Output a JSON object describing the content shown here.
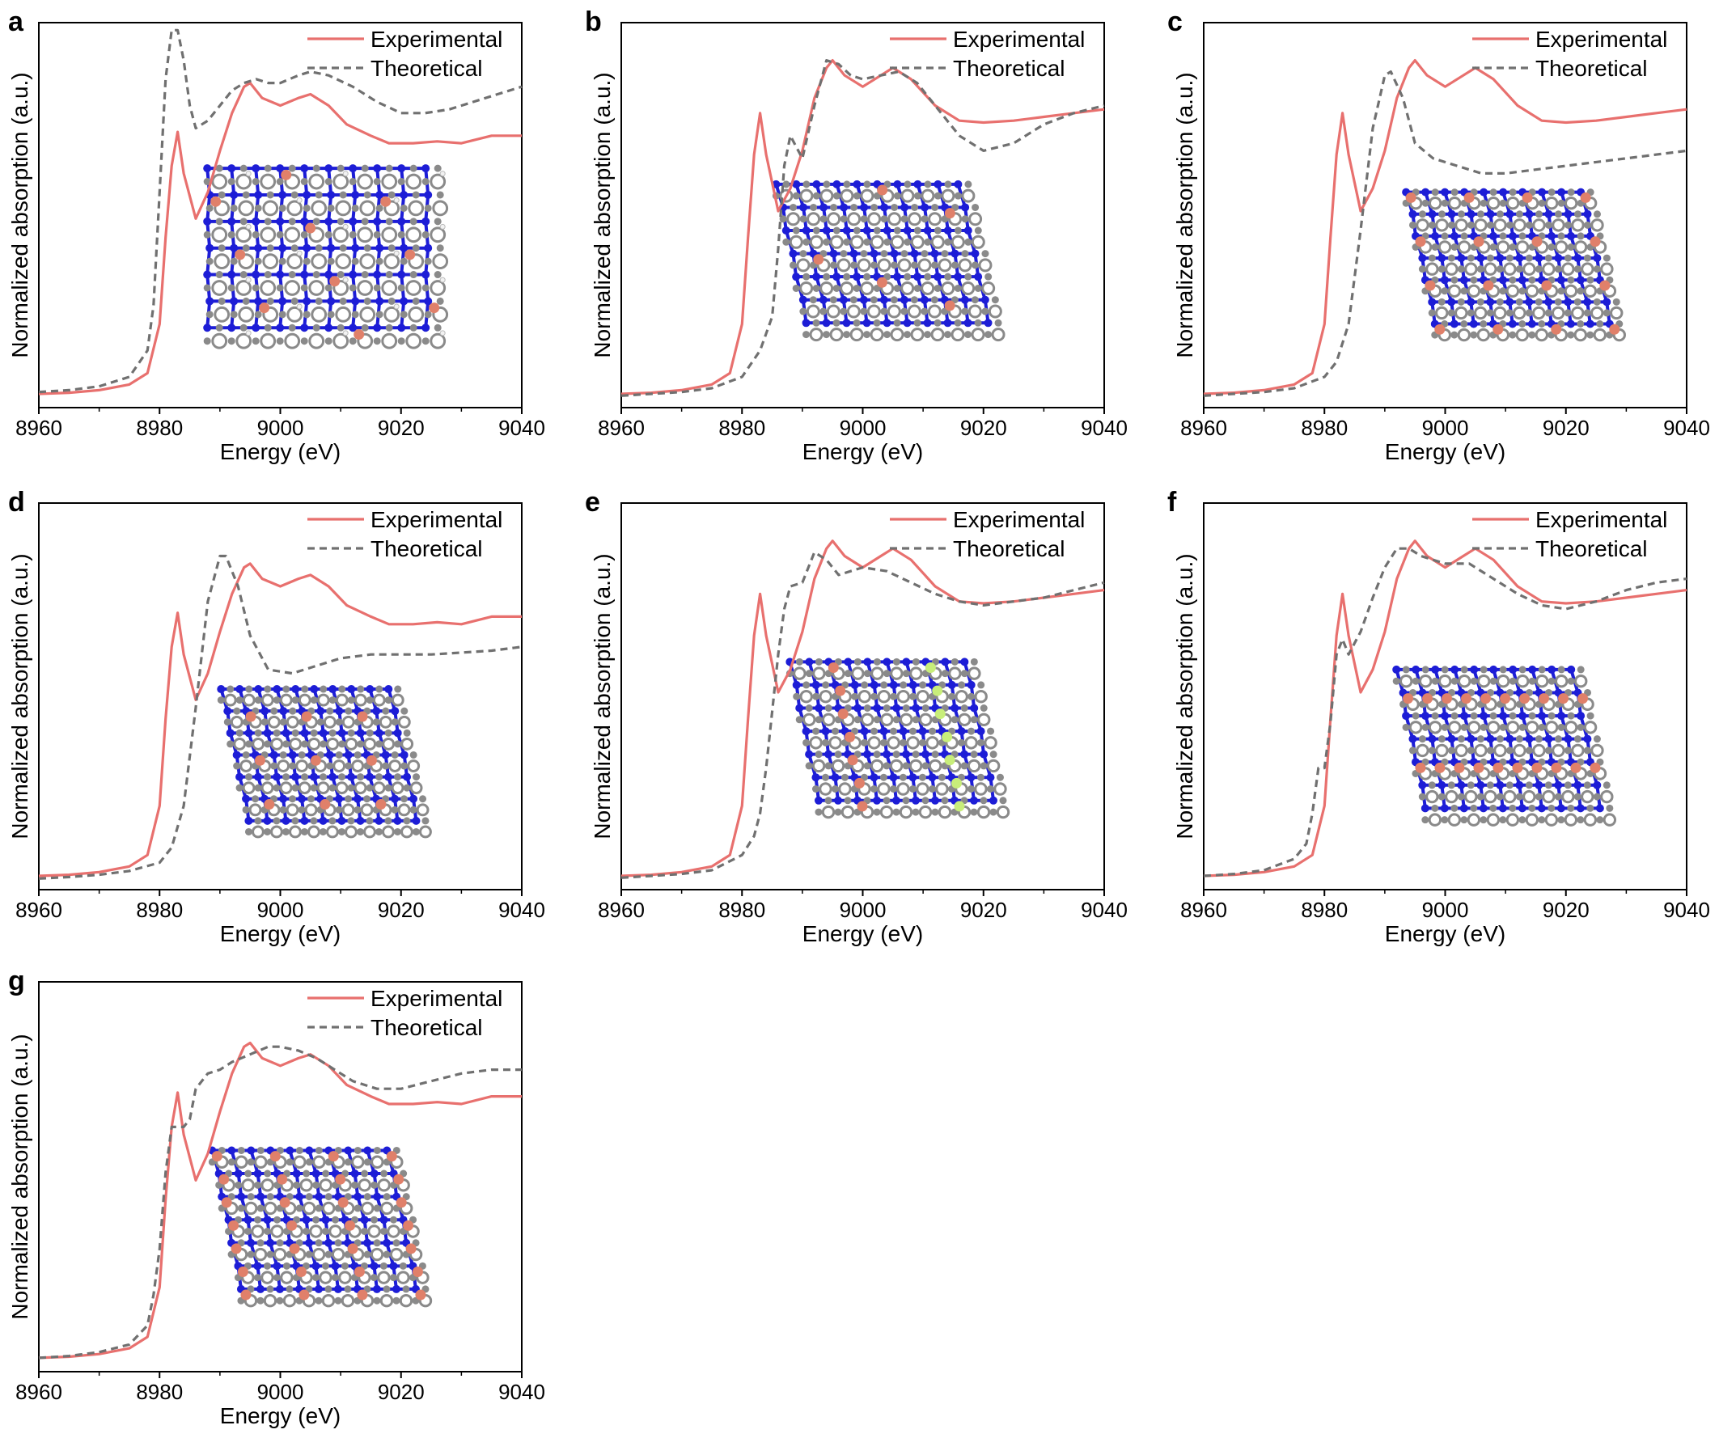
{
  "figure": {
    "colors": {
      "experimental": "#e8706e",
      "theoretical": "#707070",
      "axis": "#000000",
      "carbon": "#8a8a8a",
      "nitrogen": "#1d1dd6",
      "copper": "#e0806a",
      "hydrogen": "#f2f2f2",
      "chlorine": "#c8ee7a"
    }
  },
  "chart_data": [
    {
      "panel": "a",
      "type": "line",
      "xlabel": "Energy (eV)",
      "ylabel": "Normalized absorption (a.u.)",
      "xlim": [
        8960,
        9040
      ],
      "ylim": [
        0,
        1
      ],
      "xticks": [
        "8960",
        "8980",
        "9000",
        "9020",
        "9040"
      ],
      "legend": [
        "Experimental",
        "Theoretical"
      ],
      "legend_position": "top-right",
      "inset": "structure-a",
      "series": [
        {
          "name": "Experimental",
          "x": [
            8960,
            8965,
            8970,
            8975,
            8978,
            8980,
            8981,
            8982,
            8983,
            8984,
            8986,
            8988,
            8990,
            8992,
            8994,
            8995,
            8997,
            9000,
            9003,
            9005,
            9008,
            9011,
            9015,
            9018,
            9022,
            9026,
            9030,
            9035,
            9040
          ],
          "y": [
            0.015,
            0.018,
            0.025,
            0.04,
            0.07,
            0.2,
            0.43,
            0.62,
            0.71,
            0.6,
            0.48,
            0.55,
            0.66,
            0.76,
            0.83,
            0.84,
            0.8,
            0.78,
            0.8,
            0.81,
            0.78,
            0.73,
            0.7,
            0.68,
            0.68,
            0.685,
            0.68,
            0.7,
            0.7
          ]
        },
        {
          "name": "Theoretical",
          "x": [
            8960,
            8965,
            8970,
            8975,
            8978,
            8979,
            8980,
            8981,
            8982,
            8983,
            8984,
            8985,
            8986,
            8988,
            8990,
            8992,
            8994,
            8996,
            8998,
            9000,
            9003,
            9005,
            9008,
            9012,
            9016,
            9020,
            9024,
            9028,
            9032,
            9036,
            9040
          ],
          "y": [
            0.02,
            0.025,
            0.035,
            0.06,
            0.13,
            0.25,
            0.55,
            0.85,
            0.98,
            0.98,
            0.9,
            0.78,
            0.72,
            0.74,
            0.78,
            0.82,
            0.84,
            0.85,
            0.84,
            0.84,
            0.86,
            0.87,
            0.86,
            0.83,
            0.79,
            0.76,
            0.76,
            0.77,
            0.79,
            0.81,
            0.83
          ]
        }
      ]
    },
    {
      "panel": "b",
      "type": "line",
      "xlabel": "Energy (eV)",
      "ylabel": "Normalized absorption (a.u.)",
      "xlim": [
        8960,
        9040
      ],
      "ylim": [
        0,
        1
      ],
      "xticks": [
        "8960",
        "8980",
        "9000",
        "9020",
        "9040"
      ],
      "legend": [
        "Experimental",
        "Theoretical"
      ],
      "legend_position": "top-right",
      "inset": "structure-b",
      "series": [
        {
          "name": "Experimental",
          "x": [
            8960,
            8965,
            8970,
            8975,
            8978,
            8980,
            8981,
            8982,
            8983,
            8984,
            8986,
            8988,
            8990,
            8992,
            8994,
            8995,
            8997,
            9000,
            9003,
            9005,
            9008,
            9012,
            9016,
            9020,
            9025,
            9030,
            9035,
            9040
          ],
          "y": [
            0.015,
            0.018,
            0.025,
            0.04,
            0.07,
            0.2,
            0.43,
            0.65,
            0.76,
            0.65,
            0.5,
            0.56,
            0.66,
            0.8,
            0.88,
            0.9,
            0.86,
            0.83,
            0.86,
            0.88,
            0.85,
            0.78,
            0.74,
            0.735,
            0.74,
            0.75,
            0.76,
            0.77
          ]
        },
        {
          "name": "Theoretical",
          "x": [
            8960,
            8965,
            8970,
            8975,
            8980,
            8983,
            8985,
            8986,
            8987,
            8988,
            8989,
            8990,
            8992,
            8994,
            8996,
            8998,
            9000,
            9003,
            9006,
            9009,
            9012,
            9016,
            9020,
            9025,
            9030,
            9035,
            9040
          ],
          "y": [
            0.01,
            0.015,
            0.02,
            0.03,
            0.06,
            0.13,
            0.22,
            0.4,
            0.62,
            0.7,
            0.67,
            0.64,
            0.78,
            0.9,
            0.89,
            0.86,
            0.85,
            0.86,
            0.87,
            0.84,
            0.78,
            0.7,
            0.66,
            0.68,
            0.73,
            0.76,
            0.78
          ]
        }
      ]
    },
    {
      "panel": "c",
      "type": "line",
      "xlabel": "Energy (eV)",
      "ylabel": "Normalized absorption (a.u.)",
      "xlim": [
        8960,
        9040
      ],
      "ylim": [
        0,
        1
      ],
      "xticks": [
        "8960",
        "8980",
        "9000",
        "9020",
        "9040"
      ],
      "legend": [
        "Experimental",
        "Theoretical"
      ],
      "legend_position": "top-right",
      "inset": "structure-c",
      "series": [
        {
          "name": "Experimental",
          "x": [
            8960,
            8965,
            8970,
            8975,
            8978,
            8980,
            8981,
            8982,
            8983,
            8984,
            8986,
            8988,
            8990,
            8992,
            8994,
            8995,
            8997,
            9000,
            9003,
            9005,
            9008,
            9012,
            9016,
            9020,
            9025,
            9030,
            9035,
            9040
          ],
          "y": [
            0.015,
            0.018,
            0.025,
            0.04,
            0.07,
            0.2,
            0.43,
            0.65,
            0.76,
            0.65,
            0.5,
            0.56,
            0.66,
            0.8,
            0.88,
            0.9,
            0.86,
            0.83,
            0.86,
            0.88,
            0.85,
            0.78,
            0.74,
            0.735,
            0.74,
            0.75,
            0.76,
            0.77
          ]
        },
        {
          "name": "Theoretical",
          "x": [
            8960,
            8965,
            8970,
            8975,
            8980,
            8982,
            8984,
            8986,
            8988,
            8990,
            8991,
            8993,
            8995,
            8998,
            9002,
            9006,
            9010,
            9015,
            9020,
            9025,
            9030,
            9035,
            9040
          ],
          "y": [
            0.01,
            0.015,
            0.02,
            0.03,
            0.06,
            0.1,
            0.2,
            0.45,
            0.72,
            0.86,
            0.87,
            0.8,
            0.68,
            0.64,
            0.62,
            0.6,
            0.6,
            0.61,
            0.62,
            0.63,
            0.64,
            0.65,
            0.66
          ]
        }
      ]
    },
    {
      "panel": "d",
      "type": "line",
      "xlabel": "Energy (eV)",
      "ylabel": "Normalized absorption (a.u.)",
      "xlim": [
        8960,
        9040
      ],
      "ylim": [
        0,
        1
      ],
      "xticks": [
        "8960",
        "8980",
        "9000",
        "9020",
        "9040"
      ],
      "legend": [
        "Experimental",
        "Theoretical"
      ],
      "legend_position": "top-right",
      "inset": "structure-d",
      "series": [
        {
          "name": "Experimental",
          "x": [
            8960,
            8965,
            8970,
            8975,
            8978,
            8980,
            8981,
            8982,
            8983,
            8984,
            8986,
            8988,
            8990,
            8992,
            8994,
            8995,
            8997,
            9000,
            9003,
            9005,
            9008,
            9011,
            9015,
            9018,
            9022,
            9026,
            9030,
            9035,
            9040
          ],
          "y": [
            0.015,
            0.018,
            0.025,
            0.04,
            0.07,
            0.2,
            0.43,
            0.62,
            0.71,
            0.6,
            0.48,
            0.55,
            0.66,
            0.76,
            0.83,
            0.84,
            0.8,
            0.78,
            0.8,
            0.81,
            0.78,
            0.73,
            0.7,
            0.68,
            0.68,
            0.685,
            0.68,
            0.7,
            0.7
          ]
        },
        {
          "name": "Theoretical",
          "x": [
            8960,
            8965,
            8970,
            8975,
            8980,
            8982,
            8984,
            8986,
            8988,
            8990,
            8991,
            8993,
            8995,
            8998,
            9002,
            9006,
            9010,
            9015,
            9020,
            9025,
            9030,
            9035,
            9040
          ],
          "y": [
            0.008,
            0.012,
            0.018,
            0.028,
            0.05,
            0.09,
            0.2,
            0.46,
            0.74,
            0.86,
            0.86,
            0.78,
            0.65,
            0.56,
            0.55,
            0.57,
            0.59,
            0.6,
            0.6,
            0.6,
            0.605,
            0.61,
            0.62
          ]
        }
      ]
    },
    {
      "panel": "e",
      "type": "line",
      "xlabel": "Energy (eV)",
      "ylabel": "Normalized absorption (a.u.)",
      "xlim": [
        8960,
        9040
      ],
      "ylim": [
        0,
        1
      ],
      "xticks": [
        "8960",
        "8980",
        "9000",
        "9020",
        "9040"
      ],
      "legend": [
        "Experimental",
        "Theoretical"
      ],
      "legend_position": "top-right",
      "inset": "structure-e",
      "series": [
        {
          "name": "Experimental",
          "x": [
            8960,
            8965,
            8970,
            8975,
            8978,
            8980,
            8981,
            8982,
            8983,
            8984,
            8986,
            8988,
            8990,
            8992,
            8994,
            8995,
            8997,
            9000,
            9003,
            9005,
            9008,
            9012,
            9016,
            9020,
            9025,
            9030,
            9035,
            9040
          ],
          "y": [
            0.015,
            0.018,
            0.025,
            0.04,
            0.07,
            0.2,
            0.43,
            0.65,
            0.76,
            0.65,
            0.5,
            0.56,
            0.66,
            0.8,
            0.88,
            0.9,
            0.86,
            0.83,
            0.86,
            0.88,
            0.85,
            0.78,
            0.74,
            0.735,
            0.74,
            0.75,
            0.76,
            0.77
          ]
        },
        {
          "name": "Theoretical",
          "x": [
            8960,
            8965,
            8970,
            8975,
            8980,
            8982,
            8983,
            8984,
            8985,
            8986,
            8987,
            8988,
            8990,
            8992,
            8994,
            8996,
            8998,
            9000,
            9004,
            9008,
            9012,
            9016,
            9020,
            9025,
            9030,
            9035,
            9040
          ],
          "y": [
            0.01,
            0.015,
            0.02,
            0.03,
            0.07,
            0.12,
            0.18,
            0.3,
            0.45,
            0.6,
            0.72,
            0.78,
            0.79,
            0.87,
            0.85,
            0.81,
            0.82,
            0.83,
            0.82,
            0.79,
            0.76,
            0.74,
            0.73,
            0.74,
            0.75,
            0.77,
            0.79
          ]
        }
      ]
    },
    {
      "panel": "f",
      "type": "line",
      "xlabel": "Energy (eV)",
      "ylabel": "Normalized absorption (a.u.)",
      "xlim": [
        8960,
        9040
      ],
      "ylim": [
        0,
        1
      ],
      "xticks": [
        "8960",
        "8980",
        "9000",
        "9020",
        "9040"
      ],
      "legend": [
        "Experimental",
        "Theoretical"
      ],
      "legend_position": "top-right",
      "inset": "structure-f",
      "series": [
        {
          "name": "Experimental",
          "x": [
            8960,
            8965,
            8970,
            8975,
            8978,
            8980,
            8981,
            8982,
            8983,
            8984,
            8986,
            8988,
            8990,
            8992,
            8994,
            8995,
            8997,
            9000,
            9003,
            9005,
            9008,
            9012,
            9016,
            9020,
            9025,
            9030,
            9035,
            9040
          ],
          "y": [
            0.015,
            0.018,
            0.025,
            0.04,
            0.07,
            0.2,
            0.43,
            0.65,
            0.76,
            0.65,
            0.5,
            0.56,
            0.66,
            0.8,
            0.88,
            0.9,
            0.86,
            0.83,
            0.86,
            0.88,
            0.85,
            0.78,
            0.74,
            0.735,
            0.74,
            0.75,
            0.76,
            0.77
          ]
        },
        {
          "name": "Theoretical",
          "x": [
            8960,
            8965,
            8970,
            8975,
            8977,
            8978,
            8979,
            8980,
            8981,
            8982,
            8983,
            8984,
            8986,
            8988,
            8990,
            8992,
            8994,
            8996,
            9000,
            9004,
            9008,
            9012,
            9016,
            9020,
            9025,
            9030,
            9035,
            9040
          ],
          "y": [
            0.015,
            0.02,
            0.03,
            0.06,
            0.1,
            0.18,
            0.3,
            0.3,
            0.42,
            0.6,
            0.64,
            0.6,
            0.66,
            0.75,
            0.83,
            0.88,
            0.88,
            0.86,
            0.84,
            0.84,
            0.8,
            0.76,
            0.73,
            0.72,
            0.74,
            0.77,
            0.79,
            0.8
          ]
        }
      ]
    },
    {
      "panel": "g",
      "type": "line",
      "xlabel": "Energy (eV)",
      "ylabel": "Normalized absorption (a.u.)",
      "xlim": [
        8960,
        9040
      ],
      "ylim": [
        0,
        1
      ],
      "xticks": [
        "8960",
        "8980",
        "9000",
        "9020",
        "9040"
      ],
      "legend": [
        "Experimental",
        "Theoretical"
      ],
      "legend_position": "top-right",
      "inset": "structure-g",
      "series": [
        {
          "name": "Experimental",
          "x": [
            8960,
            8965,
            8970,
            8975,
            8978,
            8980,
            8981,
            8982,
            8983,
            8984,
            8986,
            8988,
            8990,
            8992,
            8994,
            8995,
            8997,
            9000,
            9003,
            9005,
            9008,
            9011,
            9015,
            9018,
            9022,
            9026,
            9030,
            9035,
            9040
          ],
          "y": [
            0.015,
            0.018,
            0.025,
            0.04,
            0.07,
            0.2,
            0.43,
            0.62,
            0.71,
            0.6,
            0.48,
            0.55,
            0.66,
            0.76,
            0.83,
            0.84,
            0.8,
            0.78,
            0.8,
            0.81,
            0.78,
            0.73,
            0.7,
            0.68,
            0.68,
            0.685,
            0.68,
            0.7,
            0.7
          ]
        },
        {
          "name": "Theoretical",
          "x": [
            8960,
            8965,
            8970,
            8975,
            8978,
            8979,
            8980,
            8981,
            8982,
            8983,
            8984,
            8985,
            8986,
            8988,
            8990,
            8992,
            8995,
            8998,
            9000,
            9003,
            9006,
            9009,
            9012,
            9016,
            9020,
            9025,
            9030,
            9035,
            9040
          ],
          "y": [
            0.015,
            0.02,
            0.03,
            0.05,
            0.1,
            0.18,
            0.3,
            0.5,
            0.62,
            0.62,
            0.62,
            0.64,
            0.72,
            0.76,
            0.77,
            0.79,
            0.81,
            0.83,
            0.83,
            0.82,
            0.8,
            0.77,
            0.74,
            0.72,
            0.72,
            0.74,
            0.76,
            0.77,
            0.77
          ]
        }
      ]
    }
  ]
}
